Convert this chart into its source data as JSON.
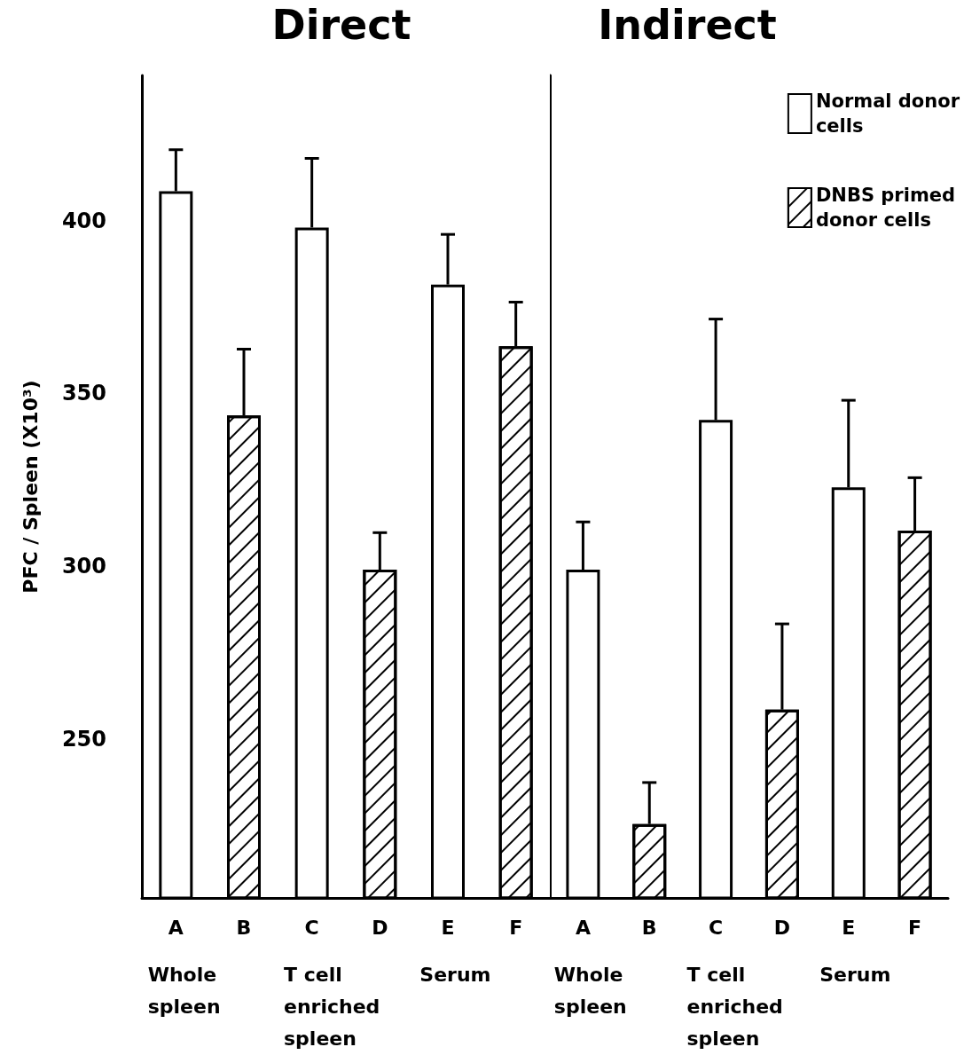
{
  "chart_data": [
    {
      "type": "bar",
      "title": "Direct",
      "ylabel": "PFC / Spleen (X10³)",
      "categories": [
        "A",
        "B",
        "C",
        "D",
        "E",
        "F"
      ],
      "ylim": [
        204,
        442
      ],
      "yticks": [
        250,
        300,
        350,
        400
      ],
      "grid": false,
      "legend": false,
      "series": [
        {
          "color": "#ffffff",
          "values": [
            408.5,
            null,
            398,
            null,
            381.5,
            null
          ],
          "errors": [
            [
              408.5,
              420.5
            ],
            null,
            [
              398,
              418
            ],
            null,
            [
              381.5,
              396
            ],
            null
          ]
        },
        {
          "color": "#ffffff",
          "values": [
            null,
            343.6,
            null,
            299,
            null,
            363.6
          ],
          "errors": [
            null,
            [
              343.6,
              362.8
            ],
            null,
            [
              299,
              309.7
            ],
            null,
            [
              363.6,
              376.4
            ]
          ]
        }
      ],
      "annotations": [
        "Whole spleen",
        "T cell enriched spleen",
        "Serum"
      ]
    },
    {
      "type": "bar",
      "title": "Indirect",
      "categories": [
        "A",
        "B",
        "C",
        "D",
        "E",
        "F"
      ],
      "ylim": [
        204,
        442
      ],
      "yticks": [
        250,
        300,
        350,
        400
      ],
      "grid": false,
      "legend": "top right",
      "tick_labels": "x",
      "series": [
        {
          "name": "Normal donor cells",
          "color": "#ffffff",
          "values": [
            299,
            null,
            342.3,
            null,
            322.8,
            null
          ],
          "errors": [
            [
              299,
              312.8
            ],
            null,
            [
              342.3,
              371.5
            ],
            null,
            [
              322.8,
              348
            ],
            null
          ]
        },
        {
          "name": "DNBS primed donor cells",
          "color": "#ffffff",
          "values": [
            null,
            225.4,
            null,
            258.5,
            null,
            310.3
          ],
          "errors": [
            null,
            [
              225.4,
              237.4
            ],
            null,
            [
              258.5,
              283.3
            ],
            null,
            [
              310.3,
              325.6
            ]
          ]
        }
      ],
      "annotations": [
        "Whole spleen",
        "T cell enriched spleen",
        "Serum"
      ]
    }
  ]
}
